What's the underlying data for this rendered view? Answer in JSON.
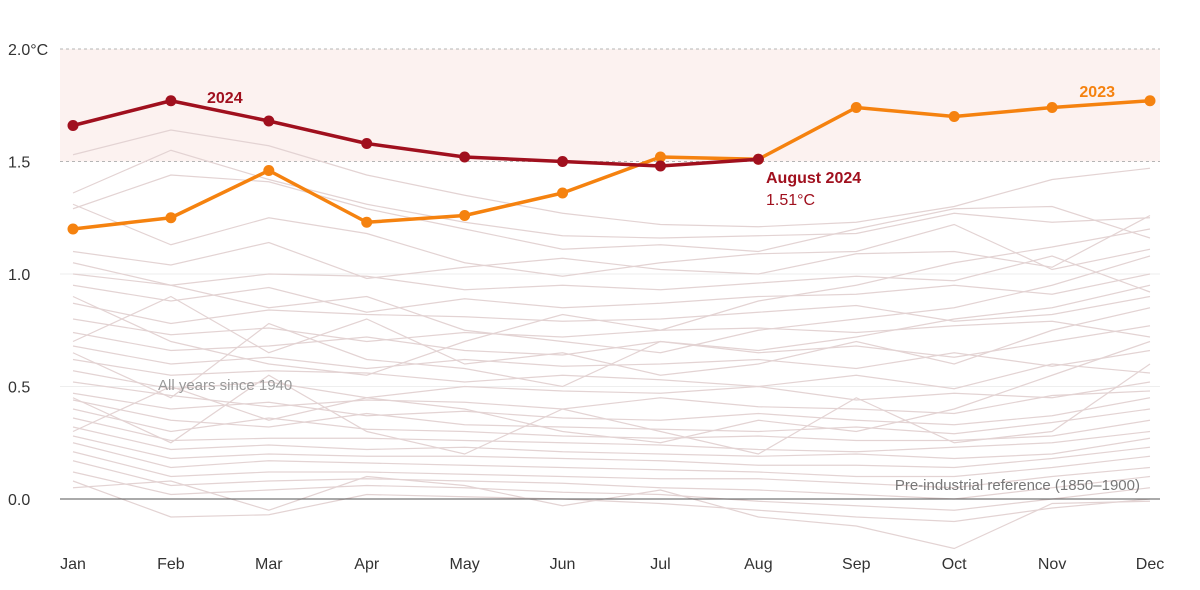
{
  "chart_data": {
    "type": "line",
    "title": "",
    "xlabel": "",
    "ylabel": "",
    "x": [
      "Jan",
      "Feb",
      "Mar",
      "Apr",
      "May",
      "Jun",
      "Jul",
      "Aug",
      "Sep",
      "Oct",
      "Nov",
      "Dec"
    ],
    "ylim": [
      -0.25,
      2.0
    ],
    "yticks": [
      {
        "value": 0.0,
        "label": "0.0"
      },
      {
        "value": 0.5,
        "label": "0.5"
      },
      {
        "value": 1.0,
        "label": "1.0"
      },
      {
        "value": 1.5,
        "label": "1.5"
      },
      {
        "value": 2.0,
        "label": "2.0°C"
      }
    ],
    "shaded_band": {
      "from": 1.5,
      "to": 2.0,
      "color": "#fcf2f0"
    },
    "series": [
      {
        "name": "2023",
        "color": "#f5820f",
        "values": [
          1.2,
          1.25,
          1.46,
          1.23,
          1.26,
          1.36,
          1.52,
          1.51,
          1.74,
          1.7,
          1.74,
          1.77
        ]
      },
      {
        "name": "2024",
        "color": "#a0101e",
        "values": [
          1.66,
          1.77,
          1.68,
          1.58,
          1.52,
          1.5,
          1.48,
          1.51,
          null,
          null,
          null,
          null
        ]
      }
    ],
    "background_series": {
      "name": "All years since 1940",
      "color": "#e3d3d3",
      "values": [
        [
          1.53,
          1.64,
          1.57,
          1.44,
          1.35,
          1.27,
          1.22,
          1.21,
          1.23,
          1.3,
          1.42,
          1.47
        ],
        [
          1.36,
          1.55,
          1.42,
          1.31,
          1.23,
          1.17,
          1.16,
          1.17,
          1.18,
          1.27,
          1.23,
          1.25
        ],
        [
          1.29,
          1.44,
          1.41,
          1.29,
          1.2,
          1.11,
          1.13,
          1.1,
          1.2,
          1.29,
          1.3,
          1.16
        ],
        [
          1.31,
          1.13,
          1.25,
          1.18,
          1.05,
          0.99,
          1.05,
          1.09,
          1.1,
          1.22,
          1.02,
          1.11
        ],
        [
          1.1,
          1.04,
          1.14,
          0.98,
          1.03,
          1.07,
          1.02,
          1.0,
          1.09,
          1.1,
          1.03,
          1.26
        ],
        [
          1.0,
          0.95,
          1.0,
          0.99,
          0.93,
          0.95,
          0.93,
          0.96,
          0.99,
          0.97,
          1.08,
          0.92
        ],
        [
          0.95,
          0.88,
          0.94,
          0.83,
          0.89,
          0.85,
          0.87,
          0.9,
          0.91,
          0.95,
          0.91,
          1.0
        ],
        [
          0.87,
          0.78,
          0.84,
          0.82,
          0.81,
          0.79,
          0.8,
          0.83,
          0.86,
          0.79,
          0.82,
          0.9
        ],
        [
          0.8,
          0.73,
          0.76,
          0.7,
          0.74,
          0.72,
          0.75,
          0.76,
          0.74,
          0.77,
          0.79,
          0.72
        ],
        [
          0.74,
          0.66,
          0.68,
          0.72,
          0.66,
          0.64,
          0.7,
          0.65,
          0.68,
          0.63,
          0.7,
          0.77
        ],
        [
          0.68,
          0.6,
          0.63,
          0.58,
          0.62,
          0.59,
          0.6,
          0.62,
          0.58,
          0.65,
          0.59,
          0.66
        ],
        [
          0.62,
          0.55,
          0.57,
          0.56,
          0.52,
          0.55,
          0.53,
          0.5,
          0.55,
          0.49,
          0.6,
          0.56
        ],
        [
          0.57,
          0.49,
          0.52,
          0.45,
          0.5,
          0.48,
          0.47,
          0.5,
          0.44,
          0.47,
          0.45,
          0.52
        ],
        [
          0.52,
          0.46,
          0.41,
          0.44,
          0.43,
          0.4,
          0.45,
          0.41,
          0.4,
          0.38,
          0.46,
          0.48
        ],
        [
          0.47,
          0.4,
          0.43,
          0.37,
          0.39,
          0.36,
          0.35,
          0.38,
          0.35,
          0.33,
          0.37,
          0.45
        ],
        [
          0.44,
          0.35,
          0.32,
          0.38,
          0.33,
          0.32,
          0.31,
          0.3,
          0.32,
          0.29,
          0.34,
          0.4
        ],
        [
          0.4,
          0.3,
          0.36,
          0.31,
          0.3,
          0.28,
          0.27,
          0.28,
          0.26,
          0.26,
          0.28,
          0.35
        ],
        [
          0.36,
          0.26,
          0.27,
          0.27,
          0.26,
          0.25,
          0.24,
          0.22,
          0.21,
          0.23,
          0.25,
          0.3
        ],
        [
          0.32,
          0.22,
          0.24,
          0.22,
          0.23,
          0.21,
          0.2,
          0.19,
          0.2,
          0.18,
          0.2,
          0.27
        ],
        [
          0.28,
          0.18,
          0.2,
          0.19,
          0.19,
          0.18,
          0.17,
          0.15,
          0.15,
          0.14,
          0.18,
          0.23
        ],
        [
          0.25,
          0.14,
          0.17,
          0.16,
          0.15,
          0.14,
          0.13,
          0.12,
          0.1,
          0.1,
          0.14,
          0.19
        ],
        [
          0.21,
          0.1,
          0.12,
          0.12,
          0.11,
          0.1,
          0.09,
          0.09,
          0.07,
          0.05,
          0.1,
          0.14
        ],
        [
          0.17,
          0.06,
          0.08,
          0.09,
          0.08,
          0.07,
          0.05,
          0.04,
          0.02,
          0.0,
          0.05,
          0.1
        ],
        [
          0.12,
          0.02,
          0.04,
          0.06,
          0.05,
          0.03,
          0.02,
          -0.01,
          -0.03,
          -0.05,
          0.0,
          0.05
        ],
        [
          0.08,
          -0.08,
          -0.07,
          0.02,
          0.01,
          0.0,
          -0.02,
          -0.05,
          -0.08,
          -0.1,
          -0.04,
          0.0
        ],
        [
          0.05,
          0.08,
          -0.05,
          0.1,
          0.06,
          -0.03,
          0.04,
          -0.08,
          -0.12,
          -0.22,
          -0.02,
          -0.01
        ],
        [
          0.65,
          0.45,
          0.78,
          0.62,
          0.58,
          0.5,
          0.7,
          0.66,
          0.72,
          0.8,
          0.85,
          0.95
        ],
        [
          0.9,
          0.7,
          0.6,
          0.55,
          0.7,
          0.82,
          0.75,
          0.88,
          0.95,
          1.05,
          1.12,
          1.2
        ],
        [
          0.3,
          0.5,
          0.35,
          0.45,
          0.4,
          0.3,
          0.25,
          0.35,
          0.3,
          0.4,
          0.55,
          0.7
        ],
        [
          0.45,
          0.25,
          0.55,
          0.3,
          0.2,
          0.4,
          0.3,
          0.2,
          0.45,
          0.25,
          0.3,
          0.6
        ],
        [
          1.05,
          0.95,
          0.85,
          0.9,
          0.75,
          0.7,
          0.65,
          0.75,
          0.8,
          0.85,
          0.95,
          1.08
        ],
        [
          0.7,
          0.9,
          0.65,
          0.8,
          0.6,
          0.65,
          0.55,
          0.6,
          0.7,
          0.6,
          0.75,
          0.85
        ]
      ]
    },
    "annotations": {
      "label_2024": "2024",
      "label_2023": "2023",
      "highlight_title": "August 2024",
      "highlight_value": "1.51°C",
      "background_label": "All years since 1940",
      "reference_label": "Pre-industrial reference (1850–1900)"
    }
  }
}
